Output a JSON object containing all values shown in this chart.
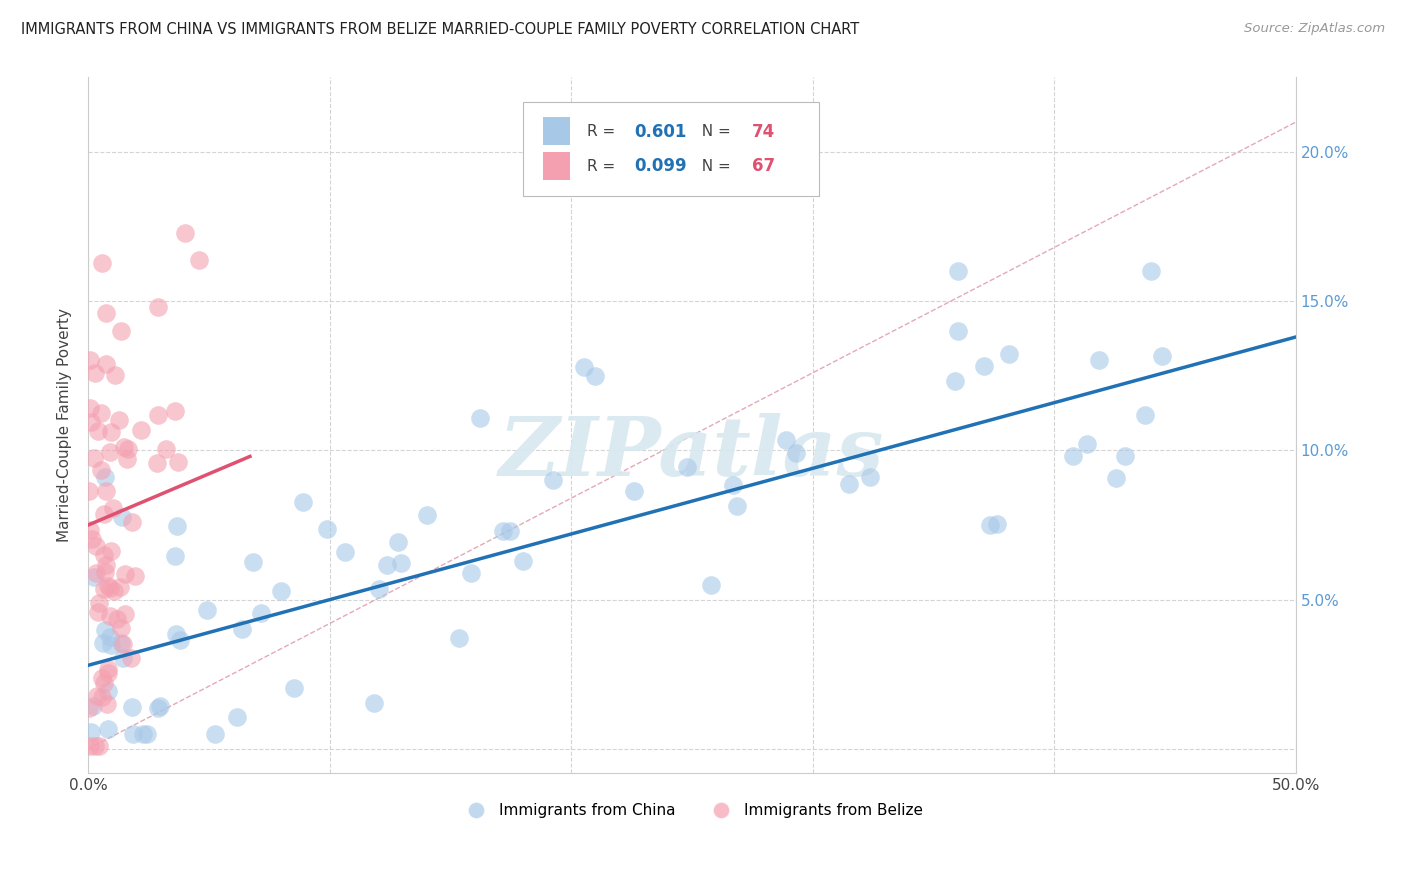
{
  "title": "IMMIGRANTS FROM CHINA VS IMMIGRANTS FROM BELIZE MARRIED-COUPLE FAMILY POVERTY CORRELATION CHART",
  "source": "Source: ZipAtlas.com",
  "ylabel": "Married-Couple Family Poverty",
  "xmin": 0.0,
  "xmax": 0.5,
  "ymin": -0.008,
  "ymax": 0.225,
  "china_R": 0.601,
  "china_N": 74,
  "belize_R": 0.099,
  "belize_N": 67,
  "china_color": "#a8c8e8",
  "belize_color": "#f4a0b0",
  "china_line_color": "#2171b5",
  "belize_line_color": "#e05070",
  "ref_line_color": "#e0a0b0",
  "grid_color": "#d0d0d0",
  "watermark": "ZIPatlas",
  "legend_labels": [
    "Immigrants from China",
    "Immigrants from Belize"
  ],
  "yticks": [
    0.0,
    0.05,
    0.1,
    0.15,
    0.2
  ],
  "right_ytick_labels": [
    "",
    "5.0%",
    "10.0%",
    "15.0%",
    "20.0%"
  ],
  "xticks": [
    0.0,
    0.1,
    0.2,
    0.3,
    0.4,
    0.5
  ],
  "china_trend_x": [
    0.0,
    0.5
  ],
  "china_trend_y": [
    0.028,
    0.138
  ],
  "belize_trend_x": [
    0.0,
    0.067
  ],
  "belize_trend_y": [
    0.075,
    0.098
  ],
  "ref_line_x": [
    0.0,
    0.5
  ],
  "ref_line_y": [
    0.0,
    0.21
  ]
}
